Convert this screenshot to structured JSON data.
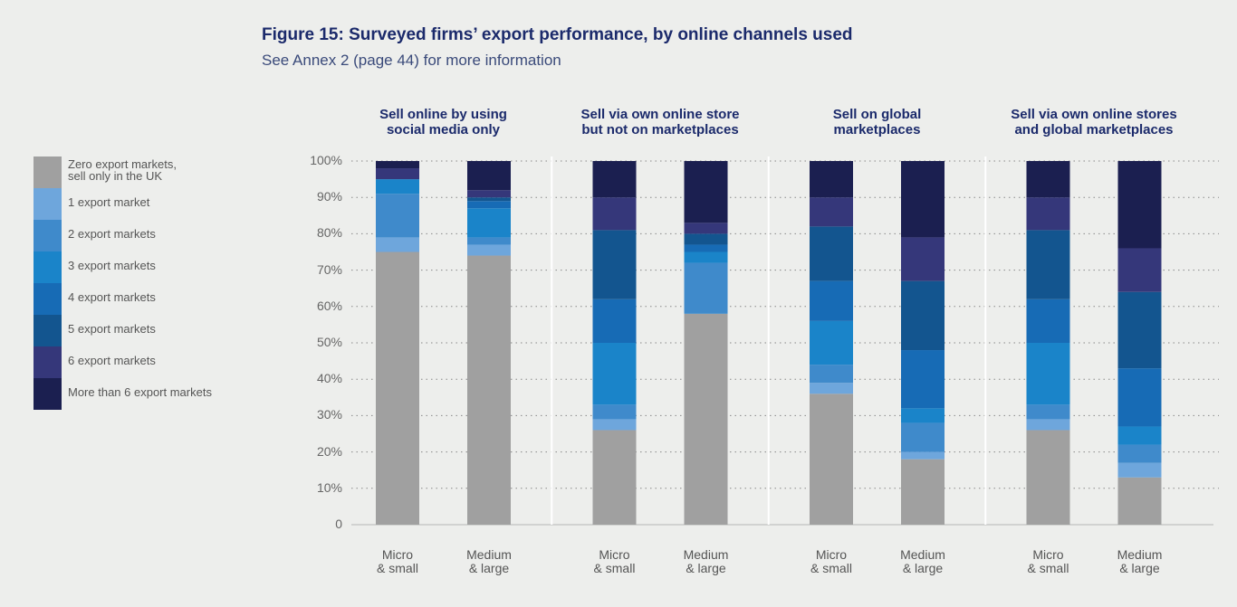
{
  "chart_data": {
    "type": "stacked_bar",
    "title": "Figure 15: Surveyed firms’ export performance, by online channels used",
    "subtitle": "See Annex 2 (page 44) for more information",
    "groups": [
      "Sell online by using\nsocial media only",
      "Sell via own online store\nbut not on marketplaces",
      "Sell on global\nmarketplaces",
      "Sell via own online stores\nand global marketplaces"
    ],
    "categories": [
      "Micro\n& small",
      "Medium\n& large",
      "Micro\n& small",
      "Medium\n& large",
      "Micro\n& small",
      "Medium\n& large",
      "Micro\n& small",
      "Medium\n& large"
    ],
    "series": [
      {
        "name": "Zero export markets,\nsell only in the UK",
        "color": "#a0a0a0",
        "values": [
          75,
          74,
          26,
          58,
          36,
          18,
          26,
          13
        ]
      },
      {
        "name": "1 export market",
        "color": "#6ea6dc",
        "values": [
          4,
          3,
          3,
          0,
          3,
          2,
          3,
          4
        ]
      },
      {
        "name": "2 export markets",
        "color": "#3f8acb",
        "values": [
          12,
          2,
          4,
          14,
          5,
          8,
          4,
          5
        ]
      },
      {
        "name": "3 export markets",
        "color": "#1a84c9",
        "values": [
          4,
          8,
          17,
          3,
          12,
          4,
          17,
          5
        ]
      },
      {
        "name": "4 export markets",
        "color": "#176bb5",
        "values": [
          0,
          2,
          12,
          2,
          11,
          16,
          12,
          16
        ]
      },
      {
        "name": "5 export markets",
        "color": "#13558f",
        "values": [
          0,
          1,
          19,
          3,
          15,
          19,
          19,
          21
        ]
      },
      {
        "name": "6 export markets",
        "color": "#35377a",
        "values": [
          3,
          2,
          9,
          3,
          8,
          12,
          9,
          12
        ]
      },
      {
        "name": "More than 6 export markets",
        "color": "#1b1f50",
        "values": [
          2,
          8,
          10,
          17,
          10,
          21,
          10,
          24
        ]
      }
    ],
    "ylim": [
      0,
      100
    ],
    "yticks": [
      0,
      {
        "value": 10,
        "label": "10%"
      },
      {
        "value": 20,
        "label": "20%"
      },
      {
        "value": 30,
        "label": "30%"
      },
      {
        "value": 40,
        "label": "40%"
      },
      {
        "value": 50,
        "label": "50%"
      },
      {
        "value": 60,
        "label": "60%"
      },
      {
        "value": 70,
        "label": "70%"
      },
      {
        "value": 80,
        "label": "80%"
      },
      {
        "value": 90,
        "label": "90%"
      },
      {
        "value": 100,
        "label": "100%"
      }
    ],
    "grid": true
  }
}
